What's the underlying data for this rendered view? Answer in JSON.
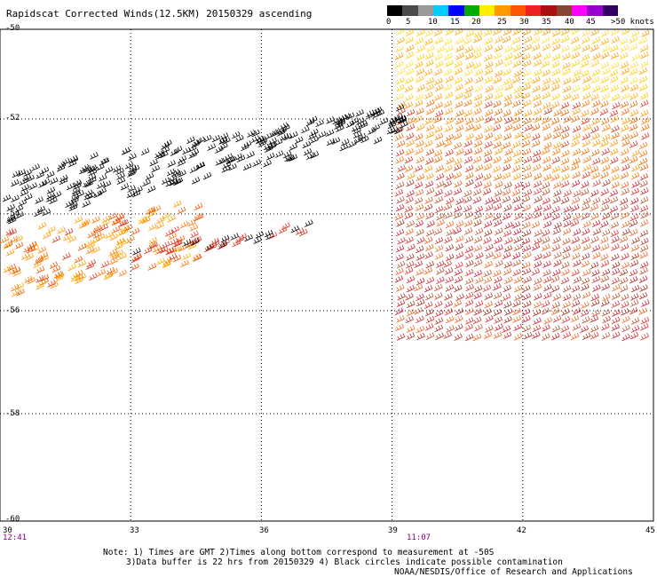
{
  "title": "Rapidscat Corrected Winds(12.5KM) 20150329 ascending",
  "y_axis_labels": [
    "-50",
    "-52",
    "-54",
    "-56",
    "-58",
    "-60"
  ],
  "x_axis_labels": [
    "30",
    "33",
    "36",
    "39",
    "42",
    "45"
  ],
  "time_labels": {
    "left": "12:41",
    "middle": "11:07"
  },
  "colorbar": {
    "tick_labels": [
      "0",
      "5",
      "10",
      "15",
      "20",
      "25",
      "30",
      "35",
      "40",
      "45",
      ">50 knots"
    ],
    "colors": [
      "#000000",
      "#4a4a4a",
      "#9a9a9a",
      "#00ccff",
      "#0000ff",
      "#00aa00",
      "#ffee00",
      "#ff9900",
      "#ff5500",
      "#ee2222",
      "#aa1111",
      "#884433",
      "#ff00ff",
      "#9900cc",
      "#330066"
    ]
  },
  "notes": {
    "line1": "Note: 1) Times are GMT 2)Times along bottom correspond to measurement at -50S",
    "line2": "3)Data buffer is 22 hrs from 20150329 4) Black circles indicate possible contamination",
    "line3": "NOAA/NESDIS/Office of Research and Applications"
  },
  "map_data": {
    "lon_range": [
      30,
      45
    ],
    "lat_range": [
      -60,
      -50
    ],
    "grid": true,
    "swaths": [
      {
        "name": "western-swath-black",
        "color": "#000000",
        "lon": [
          30,
          39
        ],
        "lat": [
          -54.5,
          -52.5
        ]
      },
      {
        "name": "western-swath-orange",
        "color": "#ff8800",
        "lon": [
          30,
          35
        ],
        "lat": [
          -55.7,
          -54.4
        ]
      },
      {
        "name": "eastern-swath",
        "lon": [
          39,
          45
        ],
        "lat": [
          -56.5,
          -50
        ]
      }
    ]
  }
}
